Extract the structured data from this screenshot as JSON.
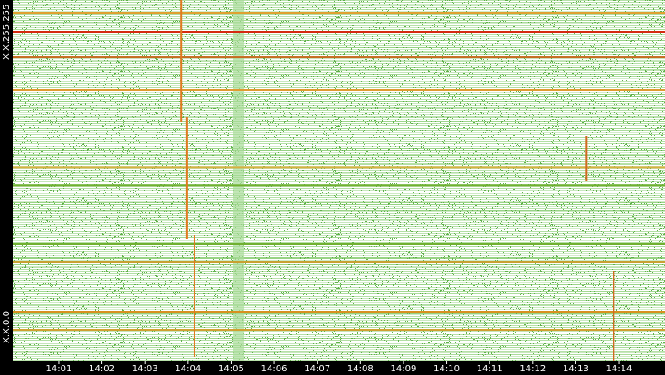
{
  "chart_data": {
    "type": "heatmap",
    "xlim": [
      -0.07,
      15.07
    ],
    "xticks": [
      {
        "value": 1,
        "label": "14:01"
      },
      {
        "value": 2,
        "label": "14:02"
      },
      {
        "value": 3,
        "label": "14:03"
      },
      {
        "value": 4,
        "label": "14:04"
      },
      {
        "value": 5,
        "label": "14:05"
      },
      {
        "value": 6,
        "label": "14:06"
      },
      {
        "value": 7,
        "label": "14:07"
      },
      {
        "value": 8,
        "label": "14:08"
      },
      {
        "value": 9,
        "label": "14:09"
      },
      {
        "value": 10,
        "label": "14:10"
      },
      {
        "value": 11,
        "label": "14:11"
      },
      {
        "value": 12,
        "label": "14:12"
      },
      {
        "value": 13,
        "label": "14:13"
      },
      {
        "value": 14,
        "label": "14:14"
      }
    ],
    "ylim": [
      0,
      65535
    ],
    "yticks": [
      {
        "value": 0,
        "label": "X.X.0.0"
      },
      {
        "value": 65535,
        "label": "X.X.255.255"
      }
    ],
    "background_color": "#8fd07a",
    "sources": {
      "values": [
        63240,
        59800,
        55200,
        49150,
        35160,
        31880,
        21300,
        18020,
        9010,
        5730
      ],
      "colors": [
        "#e0a030",
        "#d42a10",
        "#c86a20",
        "#e09a30",
        "#d8b040",
        "#70b030",
        "#70b030",
        "#c8a030",
        "#d89020",
        "#d0a030"
      ]
    },
    "scans": {
      "values": [
        3.84,
        3.98,
        4.15,
        13.25,
        13.88
      ],
      "colors": [
        "#e07a20",
        "#e07a20",
        "#e07a20",
        "#d06a20",
        "#d06a20"
      ]
    },
    "band": {
      "values": [
        5.16
      ],
      "color": "#a8dc98"
    }
  }
}
